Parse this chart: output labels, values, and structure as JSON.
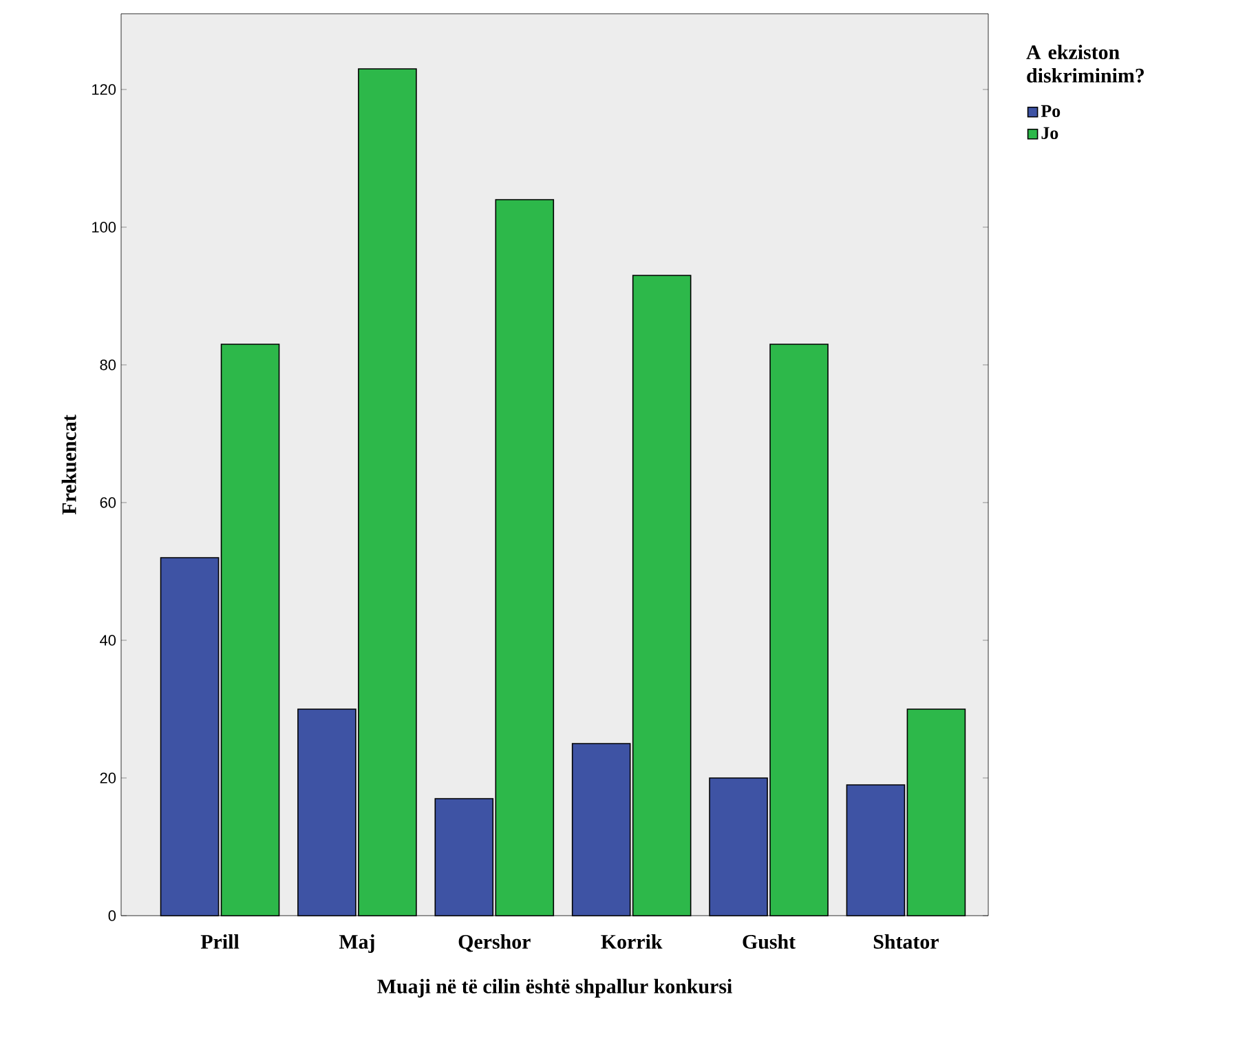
{
  "chart_data": {
    "type": "bar",
    "xlabel": "Muaji në të cilin është shpallur konkursi",
    "ylabel": "Frekuencat",
    "legend_title": "A ekziston diskriminim?",
    "legend": "top right",
    "categories": [
      "Prill",
      "Maj",
      "Qershor",
      "Korrik",
      "Gusht",
      "Shtator"
    ],
    "series": [
      {
        "name": "Po",
        "color": "#3e53a4",
        "values": [
          52,
          30,
          17,
          25,
          20,
          19
        ]
      },
      {
        "name": "Jo",
        "color": "#2db84a",
        "values": [
          83,
          123,
          104,
          93,
          83,
          30
        ]
      }
    ],
    "ylim": [
      0,
      131
    ],
    "yticks": [
      0,
      20,
      40,
      60,
      80,
      100,
      120
    ]
  }
}
